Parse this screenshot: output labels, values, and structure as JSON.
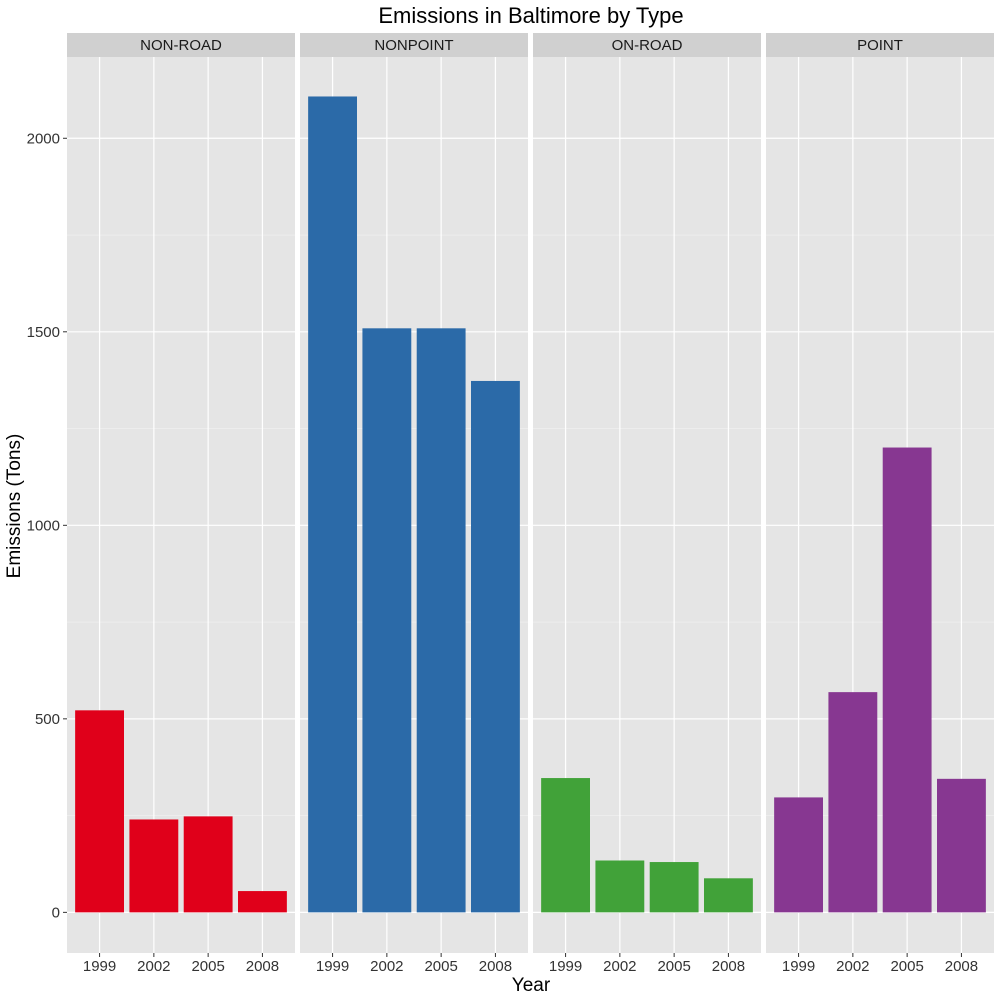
{
  "chart_data": {
    "type": "bar",
    "title": "Emissions in Baltimore by Type",
    "xlabel": "Year",
    "ylabel": "Emissions (Tons)",
    "categories": [
      "1999",
      "2002",
      "2005",
      "2008"
    ],
    "ylim": [
      -105,
      2210
    ],
    "yticks": [
      0,
      500,
      1000,
      1500,
      2000
    ],
    "grid": true,
    "legend": "none",
    "facets": [
      {
        "label": "NON-ROAD",
        "color": "#e0001a",
        "values": [
          522,
          240,
          248,
          55
        ]
      },
      {
        "label": "NONPOINT",
        "color": "#2b6aa8",
        "values": [
          2108,
          1509,
          1509,
          1373
        ]
      },
      {
        "label": "ON-ROAD",
        "color": "#41a239",
        "values": [
          347,
          134,
          130,
          88
        ]
      },
      {
        "label": "POINT",
        "color": "#873791",
        "values": [
          297,
          569,
          1201,
          345
        ]
      }
    ]
  }
}
